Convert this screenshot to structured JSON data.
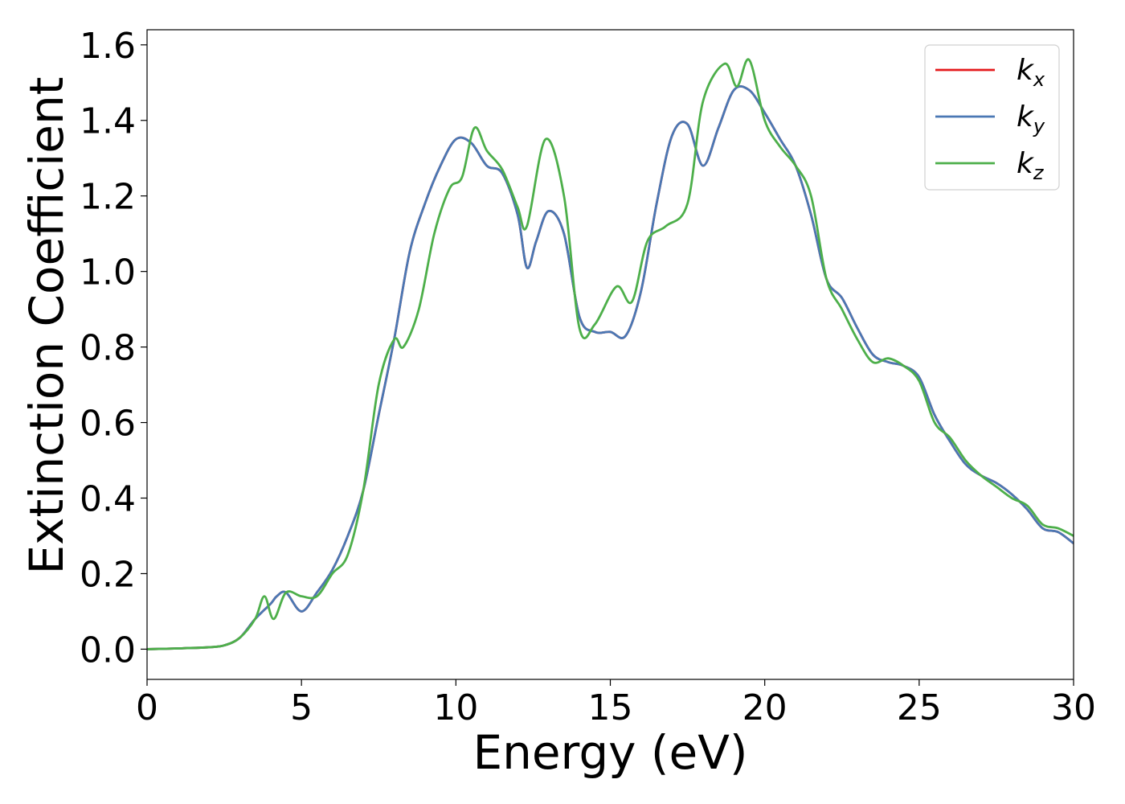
{
  "chart_data": {
    "type": "line",
    "xlabel": "Energy (eV)",
    "ylabel": "Extinction Coefficient",
    "xlim": [
      0,
      30
    ],
    "ylim": [
      -0.08,
      1.64
    ],
    "xticks": [
      0,
      5,
      10,
      15,
      20,
      25,
      30
    ],
    "yticks": [
      0.0,
      0.2,
      0.4,
      0.6,
      0.8,
      1.0,
      1.2,
      1.4,
      1.6
    ],
    "xtick_labels": [
      "0",
      "5",
      "10",
      "15",
      "20",
      "25",
      "30"
    ],
    "ytick_labels": [
      "0.0",
      "0.2",
      "0.4",
      "0.6",
      "0.8",
      "1.0",
      "1.2",
      "1.4",
      "1.6"
    ],
    "grid": false,
    "legend_position": "top-right",
    "series": [
      {
        "name": "k",
        "subscript": "x",
        "color": "#e41a1c",
        "x": [
          0,
          1,
          2,
          2.5,
          3,
          3.5,
          4,
          4.2,
          4.5,
          5,
          5.5,
          6,
          6.5,
          7,
          7.5,
          8,
          8.5,
          9,
          9.5,
          10,
          10.5,
          11,
          11.5,
          12,
          12.3,
          12.6,
          13,
          13.5,
          14,
          14.5,
          15,
          15.5,
          16,
          16.5,
          17,
          17.5,
          18,
          18.5,
          19,
          19.5,
          20,
          20.5,
          21,
          21.5,
          22,
          22.5,
          23,
          23.5,
          24,
          24.5,
          25,
          25.5,
          26,
          26.5,
          27,
          27.5,
          28,
          28.5,
          29,
          29.5,
          30
        ],
        "y": [
          0.0,
          0.002,
          0.005,
          0.01,
          0.03,
          0.08,
          0.12,
          0.14,
          0.15,
          0.1,
          0.15,
          0.21,
          0.3,
          0.42,
          0.62,
          0.82,
          1.05,
          1.18,
          1.28,
          1.35,
          1.34,
          1.28,
          1.26,
          1.15,
          1.01,
          1.08,
          1.16,
          1.1,
          0.88,
          0.84,
          0.84,
          0.83,
          0.95,
          1.18,
          1.36,
          1.39,
          1.28,
          1.38,
          1.48,
          1.48,
          1.42,
          1.35,
          1.28,
          1.15,
          0.98,
          0.93,
          0.85,
          0.78,
          0.76,
          0.75,
          0.72,
          0.62,
          0.55,
          0.49,
          0.46,
          0.44,
          0.41,
          0.37,
          0.32,
          0.31,
          0.28
        ]
      },
      {
        "name": "k",
        "subscript": "y",
        "color": "#4a78b4",
        "x": [
          0,
          1,
          2,
          2.5,
          3,
          3.5,
          4,
          4.2,
          4.5,
          5,
          5.5,
          6,
          6.5,
          7,
          7.5,
          8,
          8.5,
          9,
          9.5,
          10,
          10.5,
          11,
          11.5,
          12,
          12.3,
          12.6,
          13,
          13.5,
          14,
          14.5,
          15,
          15.5,
          16,
          16.5,
          17,
          17.5,
          18,
          18.5,
          19,
          19.5,
          20,
          20.5,
          21,
          21.5,
          22,
          22.5,
          23,
          23.5,
          24,
          24.5,
          25,
          25.5,
          26,
          26.5,
          27,
          27.5,
          28,
          28.5,
          29,
          29.5,
          30
        ],
        "y": [
          0.0,
          0.002,
          0.005,
          0.01,
          0.03,
          0.08,
          0.12,
          0.14,
          0.15,
          0.1,
          0.15,
          0.21,
          0.3,
          0.42,
          0.62,
          0.82,
          1.05,
          1.18,
          1.28,
          1.35,
          1.34,
          1.28,
          1.26,
          1.15,
          1.01,
          1.08,
          1.16,
          1.1,
          0.88,
          0.84,
          0.84,
          0.83,
          0.95,
          1.18,
          1.36,
          1.39,
          1.28,
          1.38,
          1.48,
          1.48,
          1.42,
          1.35,
          1.28,
          1.15,
          0.98,
          0.93,
          0.85,
          0.78,
          0.76,
          0.75,
          0.72,
          0.62,
          0.55,
          0.49,
          0.46,
          0.44,
          0.41,
          0.37,
          0.32,
          0.31,
          0.28
        ]
      },
      {
        "name": "k",
        "subscript": "z",
        "color": "#4daf4a",
        "x": [
          0,
          1,
          2,
          2.5,
          3,
          3.5,
          3.8,
          4.1,
          4.5,
          5,
          5.5,
          6,
          6.5,
          7,
          7.5,
          8,
          8.3,
          8.8,
          9.3,
          9.8,
          10.2,
          10.6,
          11,
          11.5,
          12,
          12.3,
          12.9,
          13.5,
          14,
          14.5,
          15.2,
          15.7,
          16.2,
          16.8,
          17.5,
          18,
          18.7,
          19.1,
          19.5,
          20,
          20.5,
          21,
          21.5,
          22,
          22.5,
          23,
          23.5,
          24,
          24.5,
          25,
          25.5,
          26,
          26.5,
          27,
          27.5,
          28,
          28.5,
          29,
          29.5,
          30
        ],
        "y": [
          0.0,
          0.002,
          0.005,
          0.01,
          0.03,
          0.08,
          0.14,
          0.08,
          0.15,
          0.14,
          0.14,
          0.2,
          0.25,
          0.42,
          0.7,
          0.82,
          0.8,
          0.9,
          1.1,
          1.22,
          1.25,
          1.38,
          1.32,
          1.27,
          1.17,
          1.12,
          1.35,
          1.2,
          0.85,
          0.86,
          0.96,
          0.92,
          1.08,
          1.12,
          1.18,
          1.45,
          1.55,
          1.49,
          1.56,
          1.4,
          1.33,
          1.28,
          1.2,
          0.98,
          0.9,
          0.82,
          0.76,
          0.77,
          0.75,
          0.71,
          0.6,
          0.56,
          0.5,
          0.46,
          0.43,
          0.4,
          0.38,
          0.33,
          0.32,
          0.3
        ]
      }
    ]
  }
}
